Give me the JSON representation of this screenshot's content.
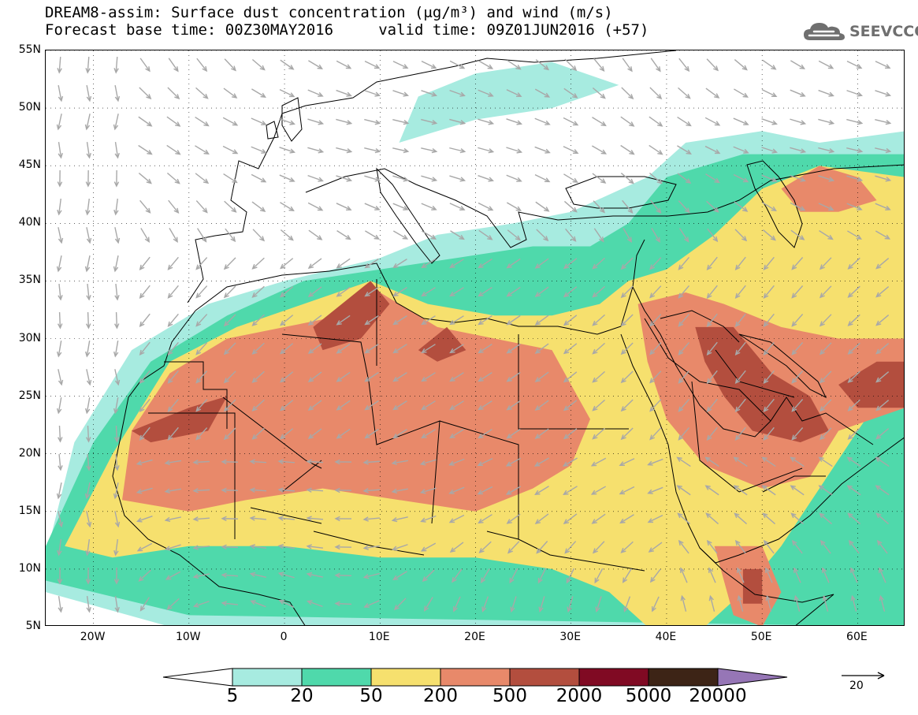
{
  "title": {
    "line1": "DREAM8-assim: Surface dust concentration (μg/m³) and wind (m/s)",
    "line2": "Forecast base time: 00Z30MAY2016     valid time: 09Z01JUN2016 (+57)"
  },
  "logo": {
    "text": "SEEVCCC",
    "icon": "cloud-icon",
    "color": "#6f6f6f"
  },
  "map": {
    "lat_range": [
      5,
      55
    ],
    "lon_range": [
      -25,
      65
    ],
    "lat_labels": [
      "55N",
      "50N",
      "45N",
      "40N",
      "35N",
      "30N",
      "25N",
      "20N",
      "15N",
      "10N",
      "5N"
    ],
    "lat_values": [
      55,
      50,
      45,
      40,
      35,
      30,
      25,
      20,
      15,
      10,
      5
    ],
    "lon_labels": [
      "20W",
      "10W",
      "0",
      "10E",
      "20E",
      "30E",
      "40E",
      "50E",
      "60E"
    ],
    "lon_values": [
      -20,
      -10,
      0,
      10,
      20,
      30,
      40,
      50,
      60
    ],
    "grid": "dotted",
    "wind_arrow_color": "#a8a8a8",
    "dust_regions": [
      {
        "level": 1,
        "color": "#a7ebe0",
        "polygon": [
          [
            -25,
            11
          ],
          [
            -22,
            21
          ],
          [
            -16,
            29
          ],
          [
            -8,
            33
          ],
          [
            0,
            35
          ],
          [
            10,
            37
          ],
          [
            16,
            39
          ],
          [
            24,
            40
          ],
          [
            30,
            41
          ],
          [
            38,
            44
          ],
          [
            42,
            47
          ],
          [
            50,
            48
          ],
          [
            56,
            47
          ],
          [
            65,
            48
          ],
          [
            65,
            5
          ],
          [
            -12,
            5
          ],
          [
            -25,
            8
          ]
        ]
      },
      {
        "level": 1,
        "color": "#a7ebe0",
        "polygon": [
          [
            12,
            47
          ],
          [
            20,
            49
          ],
          [
            28,
            50
          ],
          [
            35,
            52
          ],
          [
            28,
            54
          ],
          [
            20,
            53
          ],
          [
            14,
            51
          ]
        ]
      },
      {
        "level": 2,
        "color": "#4fd9ab",
        "polygon": [
          [
            -25,
            12
          ],
          [
            -20,
            21
          ],
          [
            -14,
            28
          ],
          [
            -6,
            32
          ],
          [
            2,
            35
          ],
          [
            10,
            36
          ],
          [
            18,
            37
          ],
          [
            26,
            38
          ],
          [
            32,
            38
          ],
          [
            36,
            40
          ],
          [
            40,
            44
          ],
          [
            48,
            46
          ],
          [
            56,
            46
          ],
          [
            65,
            46
          ],
          [
            65,
            5
          ],
          [
            -10,
            6
          ],
          [
            -25,
            9
          ]
        ]
      },
      {
        "level": 3,
        "color": "#f6e06e",
        "polygon": [
          [
            -23,
            12
          ],
          [
            -18,
            20
          ],
          [
            -12,
            28
          ],
          [
            -5,
            31
          ],
          [
            2,
            33
          ],
          [
            9,
            35
          ],
          [
            15,
            33
          ],
          [
            22,
            32
          ],
          [
            28,
            32
          ],
          [
            33,
            33
          ],
          [
            36,
            35
          ],
          [
            40,
            36
          ],
          [
            45,
            39
          ],
          [
            50,
            43
          ],
          [
            56,
            45
          ],
          [
            65,
            44
          ],
          [
            65,
            28
          ],
          [
            60,
            22
          ],
          [
            56,
            17
          ],
          [
            52,
            12
          ],
          [
            48,
            8
          ],
          [
            44,
            5
          ],
          [
            38,
            5
          ],
          [
            34,
            8
          ],
          [
            28,
            10
          ],
          [
            20,
            11
          ],
          [
            10,
            11
          ],
          [
            0,
            12
          ],
          [
            -10,
            12
          ],
          [
            -18,
            11
          ]
        ]
      },
      {
        "level": 4,
        "color": "#e8896a",
        "polygon": [
          [
            -17,
            16
          ],
          [
            -16,
            22
          ],
          [
            -12,
            27
          ],
          [
            -6,
            30
          ],
          [
            0,
            31
          ],
          [
            6,
            32
          ],
          [
            10,
            34
          ],
          [
            16,
            31
          ],
          [
            22,
            30
          ],
          [
            28,
            29
          ],
          [
            30,
            26
          ],
          [
            32,
            23
          ],
          [
            30,
            19
          ],
          [
            26,
            17
          ],
          [
            20,
            15
          ],
          [
            12,
            16
          ],
          [
            4,
            17
          ],
          [
            -4,
            16
          ],
          [
            -10,
            15
          ]
        ]
      },
      {
        "level": 4,
        "color": "#e8896a",
        "polygon": [
          [
            37,
            33
          ],
          [
            42,
            34
          ],
          [
            46,
            33
          ],
          [
            52,
            31
          ],
          [
            58,
            30
          ],
          [
            65,
            30
          ],
          [
            65,
            24
          ],
          [
            58,
            22
          ],
          [
            55,
            18
          ],
          [
            50,
            17
          ],
          [
            44,
            19
          ],
          [
            40,
            23
          ],
          [
            38,
            28
          ]
        ]
      },
      {
        "level": 4,
        "color": "#e8896a",
        "polygon": [
          [
            52,
            43
          ],
          [
            56,
            45
          ],
          [
            60,
            44
          ],
          [
            62,
            42
          ],
          [
            58,
            41
          ],
          [
            54,
            41
          ]
        ]
      },
      {
        "level": 4,
        "color": "#e8896a",
        "polygon": [
          [
            45,
            12
          ],
          [
            50,
            12
          ],
          [
            52,
            8
          ],
          [
            50,
            5
          ],
          [
            47,
            6
          ]
        ]
      },
      {
        "level": 5,
        "color": "#b34e3e",
        "polygon": [
          [
            3,
            31
          ],
          [
            6,
            33
          ],
          [
            9,
            35
          ],
          [
            11,
            33
          ],
          [
            8,
            30
          ],
          [
            4,
            29
          ]
        ]
      },
      {
        "level": 5,
        "color": "#b34e3e",
        "polygon": [
          [
            -16,
            22
          ],
          [
            -10,
            24
          ],
          [
            -6,
            25
          ],
          [
            -8,
            22
          ],
          [
            -14,
            21
          ]
        ]
      },
      {
        "level": 5,
        "color": "#b34e3e",
        "polygon": [
          [
            14,
            29
          ],
          [
            17,
            31
          ],
          [
            19,
            29
          ],
          [
            16,
            28
          ]
        ]
      },
      {
        "level": 5,
        "color": "#b34e3e",
        "polygon": [
          [
            43,
            31
          ],
          [
            47,
            31
          ],
          [
            51,
            27
          ],
          [
            55,
            25
          ],
          [
            57,
            22
          ],
          [
            54,
            21
          ],
          [
            49,
            22
          ],
          [
            46,
            25
          ],
          [
            44,
            28
          ]
        ]
      },
      {
        "level": 5,
        "color": "#b34e3e",
        "polygon": [
          [
            58,
            26
          ],
          [
            62,
            28
          ],
          [
            65,
            28
          ],
          [
            65,
            24
          ],
          [
            60,
            24
          ]
        ]
      },
      {
        "level": 5,
        "color": "#b34e3e",
        "polygon": [
          [
            48,
            10
          ],
          [
            50,
            10
          ],
          [
            50,
            7
          ],
          [
            48,
            7
          ]
        ]
      }
    ],
    "countries_color": "#000000"
  },
  "colorbar": {
    "colors": [
      "#ffffff",
      "#a7ebe0",
      "#4fd9ab",
      "#f6e06e",
      "#e8896a",
      "#b34e3e",
      "#800a23",
      "#3d2416",
      "#9676b6"
    ],
    "labels": [
      "5",
      "20",
      "50",
      "200",
      "500",
      "2000",
      "5000",
      "20000"
    ]
  },
  "reference_vector": {
    "label": "20"
  }
}
